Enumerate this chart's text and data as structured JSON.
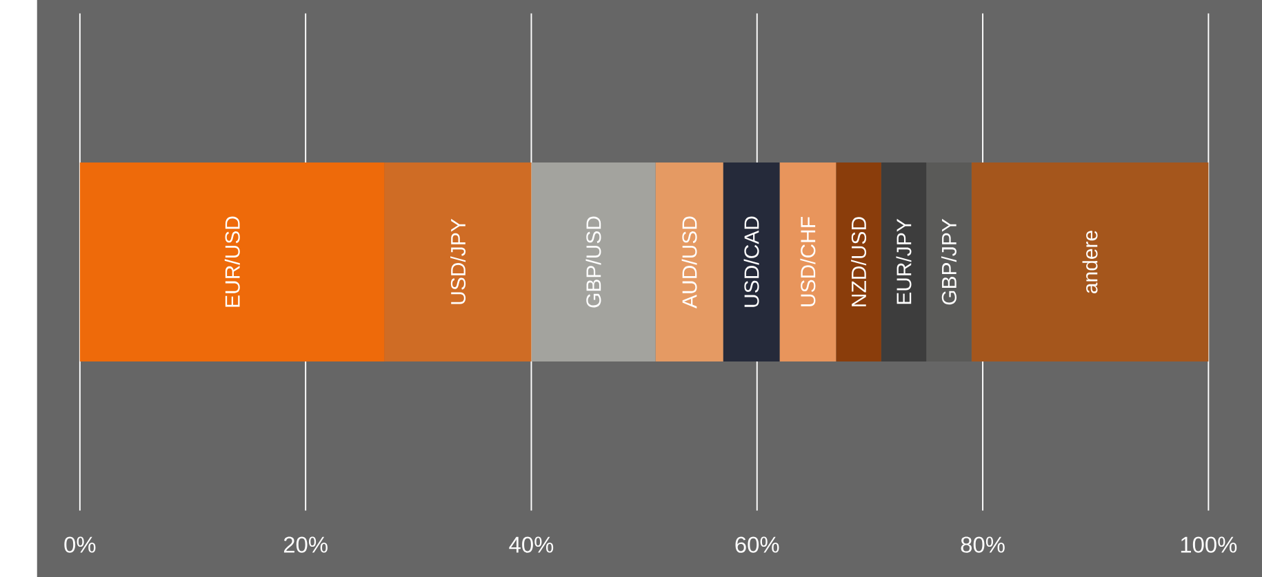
{
  "chart_data": {
    "type": "bar",
    "orientation": "horizontal",
    "stacked": true,
    "categories": [
      null
    ],
    "series": [
      {
        "name": "EUR/USD",
        "color": "#ee6a0a",
        "values": [
          27
        ]
      },
      {
        "name": "USD/JPY",
        "color": "#cf6c25",
        "values": [
          13
        ]
      },
      {
        "name": "GBP/USD",
        "color": "#a3a39e",
        "values": [
          11
        ]
      },
      {
        "name": "AUD/USD",
        "color": "#e59a63",
        "values": [
          6
        ]
      },
      {
        "name": "USD/CAD",
        "color": "#252a3a",
        "values": [
          5
        ]
      },
      {
        "name": "USD/CHF",
        "color": "#e8955c",
        "values": [
          5
        ]
      },
      {
        "name": "NZD/USD",
        "color": "#8a3d0b",
        "values": [
          4
        ]
      },
      {
        "name": "EUR/JPY",
        "color": "#3d3d3d",
        "values": [
          4
        ]
      },
      {
        "name": "GBP/JPY",
        "color": "#5a5a58",
        "values": [
          4
        ]
      },
      {
        "name": "andere",
        "color": "#a5561c",
        "values": [
          21
        ]
      }
    ],
    "xlim": [
      0,
      100
    ],
    "xticks": [
      {
        "value": 0,
        "label": "0%"
      },
      {
        "value": 20,
        "label": "20%"
      },
      {
        "value": 40,
        "label": "40%"
      },
      {
        "value": 60,
        "label": "60%"
      },
      {
        "value": 80,
        "label": "80%"
      },
      {
        "value": 100,
        "label": "100%"
      }
    ],
    "grid": "x"
  }
}
